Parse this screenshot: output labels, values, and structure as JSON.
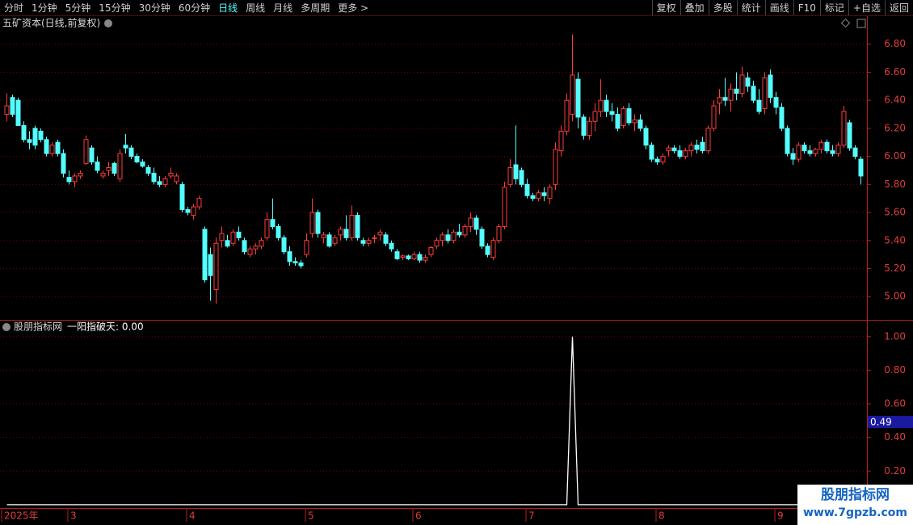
{
  "toolbar": {
    "left": [
      "分时",
      "1分钟",
      "5分钟",
      "15分钟",
      "30分钟",
      "60分钟",
      "日线",
      "周线",
      "月线",
      "多周期",
      "更多 >"
    ],
    "right": [
      "复权",
      "叠加",
      "多股",
      "统计",
      "画线",
      "F10",
      "标记",
      "+自选",
      "返回"
    ]
  },
  "chart_data": [
    {
      "type": "candlestick",
      "title": "五矿资本(日线,前复权)",
      "up_color": "#ff3c3c",
      "down_color": "#54ffff",
      "grid": true,
      "ylim": [
        4.84,
        7.0
      ],
      "yticks": [
        {
          "value": 5.0,
          "label": "5.00"
        },
        {
          "value": 5.2,
          "label": "5.20"
        },
        {
          "value": 5.4,
          "label": "5.40"
        },
        {
          "value": 5.6,
          "label": "5.60"
        },
        {
          "value": 5.8,
          "label": "5.80"
        },
        {
          "value": 6.0,
          "label": "6.00"
        },
        {
          "value": 6.2,
          "label": "6.20"
        },
        {
          "value": 6.4,
          "label": "6.40"
        },
        {
          "value": 6.6,
          "label": "6.60"
        },
        {
          "value": 6.8,
          "label": "6.80"
        }
      ],
      "candles": [
        [
          6.3,
          6.45,
          6.25,
          6.36
        ],
        [
          6.42,
          6.44,
          6.28,
          6.3
        ],
        [
          6.4,
          6.42,
          6.22,
          6.22
        ],
        [
          6.22,
          6.25,
          6.1,
          6.12
        ],
        [
          6.12,
          6.18,
          6.05,
          6.1
        ],
        [
          6.2,
          6.22,
          6.05,
          6.08
        ],
        [
          6.18,
          6.2,
          6.1,
          6.12
        ],
        [
          6.12,
          6.14,
          6.0,
          6.02
        ],
        [
          6.02,
          6.1,
          6.0,
          6.08
        ],
        [
          6.1,
          6.12,
          6.0,
          6.02
        ],
        [
          6.02,
          6.05,
          5.85,
          5.88
        ],
        [
          5.85,
          5.9,
          5.8,
          5.82
        ],
        [
          5.82,
          5.88,
          5.78,
          5.86
        ],
        [
          5.86,
          5.9,
          5.84,
          5.88
        ],
        [
          5.95,
          6.15,
          5.94,
          6.12
        ],
        [
          6.06,
          6.08,
          5.94,
          5.96
        ],
        [
          5.96,
          6.0,
          5.88,
          5.9
        ],
        [
          5.86,
          5.9,
          5.84,
          5.88
        ],
        [
          5.9,
          5.96,
          5.86,
          5.92
        ],
        [
          5.95,
          5.96,
          5.86,
          5.88
        ],
        [
          5.84,
          6.05,
          5.82,
          6.02
        ],
        [
          6.08,
          6.16,
          6.02,
          6.06
        ],
        [
          6.06,
          6.08,
          5.98,
          6.0
        ],
        [
          6.0,
          6.02,
          5.95,
          5.96
        ],
        [
          5.96,
          5.98,
          5.92,
          5.93
        ],
        [
          5.92,
          5.94,
          5.86,
          5.88
        ],
        [
          5.88,
          5.92,
          5.8,
          5.82
        ],
        [
          5.82,
          5.86,
          5.78,
          5.8
        ],
        [
          5.8,
          5.86,
          5.78,
          5.84
        ],
        [
          5.86,
          5.92,
          5.84,
          5.88
        ],
        [
          5.82,
          5.88,
          5.8,
          5.86
        ],
        [
          5.8,
          5.82,
          5.6,
          5.62
        ],
        [
          5.62,
          5.64,
          5.58,
          5.6
        ],
        [
          5.58,
          5.66,
          5.55,
          5.64
        ],
        [
          5.64,
          5.72,
          5.62,
          5.7
        ],
        [
          5.48,
          5.5,
          5.1,
          5.12
        ],
        [
          5.3,
          5.35,
          4.97,
          5.15
        ],
        [
          5.05,
          5.42,
          4.95,
          5.38
        ],
        [
          5.4,
          5.5,
          5.35,
          5.45
        ],
        [
          5.4,
          5.44,
          5.35,
          5.36
        ],
        [
          5.38,
          5.48,
          5.36,
          5.46
        ],
        [
          5.46,
          5.5,
          5.4,
          5.42
        ],
        [
          5.4,
          5.42,
          5.3,
          5.32
        ],
        [
          5.3,
          5.36,
          5.28,
          5.34
        ],
        [
          5.34,
          5.38,
          5.3,
          5.36
        ],
        [
          5.36,
          5.42,
          5.34,
          5.4
        ],
        [
          5.42,
          5.6,
          5.4,
          5.55
        ],
        [
          5.55,
          5.7,
          5.48,
          5.5
        ],
        [
          5.5,
          5.52,
          5.4,
          5.42
        ],
        [
          5.42,
          5.44,
          5.3,
          5.32
        ],
        [
          5.32,
          5.36,
          5.22,
          5.25
        ],
        [
          5.25,
          5.28,
          5.22,
          5.24
        ],
        [
          5.24,
          5.26,
          5.2,
          5.22
        ],
        [
          5.3,
          5.45,
          5.28,
          5.4
        ],
        [
          5.45,
          5.7,
          5.42,
          5.6
        ],
        [
          5.6,
          5.62,
          5.42,
          5.45
        ],
        [
          5.42,
          5.46,
          5.38,
          5.44
        ],
        [
          5.44,
          5.46,
          5.35,
          5.36
        ],
        [
          5.38,
          5.44,
          5.36,
          5.42
        ],
        [
          5.44,
          5.5,
          5.4,
          5.48
        ],
        [
          5.48,
          5.58,
          5.4,
          5.42
        ],
        [
          5.42,
          5.65,
          5.4,
          5.58
        ],
        [
          5.58,
          5.6,
          5.4,
          5.42
        ],
        [
          5.4,
          5.42,
          5.36,
          5.38
        ],
        [
          5.38,
          5.42,
          5.36,
          5.4
        ],
        [
          5.42,
          5.44,
          5.38,
          5.42
        ],
        [
          5.44,
          5.48,
          5.4,
          5.46
        ],
        [
          5.44,
          5.46,
          5.36,
          5.38
        ],
        [
          5.38,
          5.4,
          5.32,
          5.34
        ],
        [
          5.32,
          5.34,
          5.26,
          5.27
        ],
        [
          5.28,
          5.3,
          5.26,
          5.29
        ],
        [
          5.29,
          5.3,
          5.26,
          5.27
        ],
        [
          5.27,
          5.32,
          5.26,
          5.3
        ],
        [
          5.3,
          5.32,
          5.24,
          5.26
        ],
        [
          5.26,
          5.3,
          5.24,
          5.28
        ],
        [
          5.3,
          5.36,
          5.28,
          5.35
        ],
        [
          5.36,
          5.42,
          5.34,
          5.4
        ],
        [
          5.4,
          5.46,
          5.36,
          5.44
        ],
        [
          5.44,
          5.48,
          5.38,
          5.4
        ],
        [
          5.4,
          5.48,
          5.38,
          5.46
        ],
        [
          5.46,
          5.52,
          5.42,
          5.44
        ],
        [
          5.44,
          5.52,
          5.42,
          5.5
        ],
        [
          5.5,
          5.6,
          5.46,
          5.56
        ],
        [
          5.56,
          5.58,
          5.44,
          5.48
        ],
        [
          5.48,
          5.5,
          5.34,
          5.36
        ],
        [
          5.36,
          5.38,
          5.28,
          5.3
        ],
        [
          5.28,
          5.42,
          5.26,
          5.4
        ],
        [
          5.4,
          5.52,
          5.38,
          5.5
        ],
        [
          5.5,
          5.82,
          5.48,
          5.78
        ],
        [
          5.8,
          5.98,
          5.78,
          5.92
        ],
        [
          5.94,
          6.22,
          5.8,
          5.84
        ],
        [
          5.9,
          5.92,
          5.78,
          5.8
        ],
        [
          5.8,
          5.84,
          5.7,
          5.72
        ],
        [
          5.72,
          5.74,
          5.68,
          5.7
        ],
        [
          5.7,
          5.76,
          5.68,
          5.74
        ],
        [
          5.74,
          5.78,
          5.68,
          5.72
        ],
        [
          5.7,
          5.8,
          5.66,
          5.78
        ],
        [
          5.8,
          6.1,
          5.76,
          6.05
        ],
        [
          6.04,
          6.22,
          6.0,
          6.18
        ],
        [
          6.18,
          6.45,
          6.15,
          6.4
        ],
        [
          6.3,
          6.87,
          6.25,
          6.58
        ],
        [
          6.55,
          6.6,
          6.2,
          6.28
        ],
        [
          6.28,
          6.3,
          6.12,
          6.15
        ],
        [
          6.15,
          6.28,
          6.12,
          6.25
        ],
        [
          6.25,
          6.38,
          6.18,
          6.32
        ],
        [
          6.32,
          6.55,
          6.28,
          6.4
        ],
        [
          6.4,
          6.44,
          6.28,
          6.32
        ],
        [
          6.32,
          6.38,
          6.25,
          6.3
        ],
        [
          6.3,
          6.35,
          6.18,
          6.2
        ],
        [
          6.22,
          6.36,
          6.2,
          6.34
        ],
        [
          6.34,
          6.38,
          6.22,
          6.24
        ],
        [
          6.24,
          6.3,
          6.18,
          6.26
        ],
        [
          6.26,
          6.3,
          6.18,
          6.2
        ],
        [
          6.2,
          6.22,
          6.05,
          6.08
        ],
        [
          6.08,
          6.1,
          5.96,
          5.98
        ],
        [
          5.98,
          6.0,
          5.94,
          5.96
        ],
        [
          5.96,
          6.02,
          5.94,
          6.0
        ],
        [
          6.04,
          6.08,
          6.0,
          6.06
        ],
        [
          6.06,
          6.08,
          6.02,
          6.04
        ],
        [
          6.04,
          6.08,
          5.98,
          6.0
        ],
        [
          6.0,
          6.06,
          5.98,
          6.04
        ],
        [
          6.04,
          6.1,
          6.0,
          6.08
        ],
        [
          6.08,
          6.12,
          6.02,
          6.05
        ],
        [
          6.1,
          6.14,
          6.02,
          6.04
        ],
        [
          6.04,
          6.22,
          6.02,
          6.2
        ],
        [
          6.2,
          6.4,
          6.18,
          6.36
        ],
        [
          6.38,
          6.48,
          6.3,
          6.42
        ],
        [
          6.42,
          6.56,
          6.36,
          6.4
        ],
        [
          6.4,
          6.52,
          6.32,
          6.48
        ],
        [
          6.48,
          6.6,
          6.4,
          6.45
        ],
        [
          6.45,
          6.64,
          6.42,
          6.58
        ],
        [
          6.56,
          6.6,
          6.46,
          6.5
        ],
        [
          6.5,
          6.54,
          6.38,
          6.4
        ],
        [
          6.4,
          6.48,
          6.3,
          6.32
        ],
        [
          6.34,
          6.6,
          6.3,
          6.56
        ],
        [
          6.58,
          6.62,
          6.38,
          6.42
        ],
        [
          6.42,
          6.46,
          6.3,
          6.35
        ],
        [
          6.35,
          6.38,
          6.18,
          6.2
        ],
        [
          6.2,
          6.22,
          6.0,
          6.02
        ],
        [
          6.02,
          6.06,
          5.94,
          5.98
        ],
        [
          5.98,
          6.1,
          5.96,
          6.08
        ],
        [
          6.08,
          6.1,
          6.02,
          6.04
        ],
        [
          6.04,
          6.08,
          6.0,
          6.02
        ],
        [
          6.02,
          6.06,
          6.0,
          6.05
        ],
        [
          6.05,
          6.12,
          6.02,
          6.1
        ],
        [
          6.1,
          6.12,
          6.02,
          6.04
        ],
        [
          6.04,
          6.08,
          6.0,
          6.02
        ],
        [
          6.02,
          6.1,
          6.0,
          6.08
        ],
        [
          6.08,
          6.36,
          6.06,
          6.32
        ],
        [
          6.24,
          6.26,
          6.04,
          6.06
        ],
        [
          6.06,
          6.08,
          5.98,
          6.0
        ],
        [
          5.98,
          6.0,
          5.8,
          5.86
        ]
      ]
    },
    {
      "type": "line",
      "source": "股朋指标网",
      "title": "一阳指破天: 0.00",
      "color": "#ffffff",
      "ylim": [
        -0.015,
        1.095
      ],
      "yticks": [
        {
          "value": 0.2,
          "label": "0.20"
        },
        {
          "value": 0.4,
          "label": "0.40"
        },
        {
          "value": 0.6,
          "label": "0.60"
        },
        {
          "value": 0.8,
          "label": "0.80"
        },
        {
          "value": 1.0,
          "label": "1.00"
        }
      ],
      "cursor_value": 0.49,
      "values": [
        0,
        0,
        0,
        0,
        0,
        0,
        0,
        0,
        0,
        0,
        0,
        0,
        0,
        0,
        0,
        0,
        0,
        0,
        0,
        0,
        0,
        0,
        0,
        0,
        0,
        0,
        0,
        0,
        0,
        0,
        0,
        0,
        0,
        0,
        0,
        0,
        0,
        0,
        0,
        0,
        0,
        0,
        0,
        0,
        0,
        0,
        0,
        0,
        0,
        0,
        0,
        0,
        0,
        0,
        0,
        0,
        0,
        0,
        0,
        0,
        0,
        0,
        0,
        0,
        0,
        0,
        0,
        0,
        0,
        0,
        0,
        0,
        0,
        0,
        0,
        0,
        0,
        0,
        0,
        0,
        0,
        0,
        0,
        0,
        0,
        0,
        0,
        0,
        0,
        0,
        0,
        0,
        0,
        0,
        0,
        0,
        0,
        0,
        0,
        0,
        1,
        0,
        0,
        0,
        0,
        0,
        0,
        0,
        0,
        0,
        0,
        0,
        0,
        0,
        0,
        0,
        0,
        0,
        0,
        0,
        0,
        0,
        0,
        0,
        0,
        0,
        0,
        0,
        0,
        0,
        0,
        0,
        0,
        0,
        0,
        0,
        0,
        0,
        0,
        0,
        0,
        0,
        0,
        0,
        0,
        0,
        0,
        0,
        0,
        0,
        0,
        0
      ]
    }
  ],
  "x_axis": {
    "labels": [
      "2025年",
      "3",
      "4",
      "5",
      "6",
      "7",
      "8",
      "9"
    ]
  },
  "watermark": {
    "title": "股朋指标网",
    "url": "www.7gpzb.com"
  }
}
